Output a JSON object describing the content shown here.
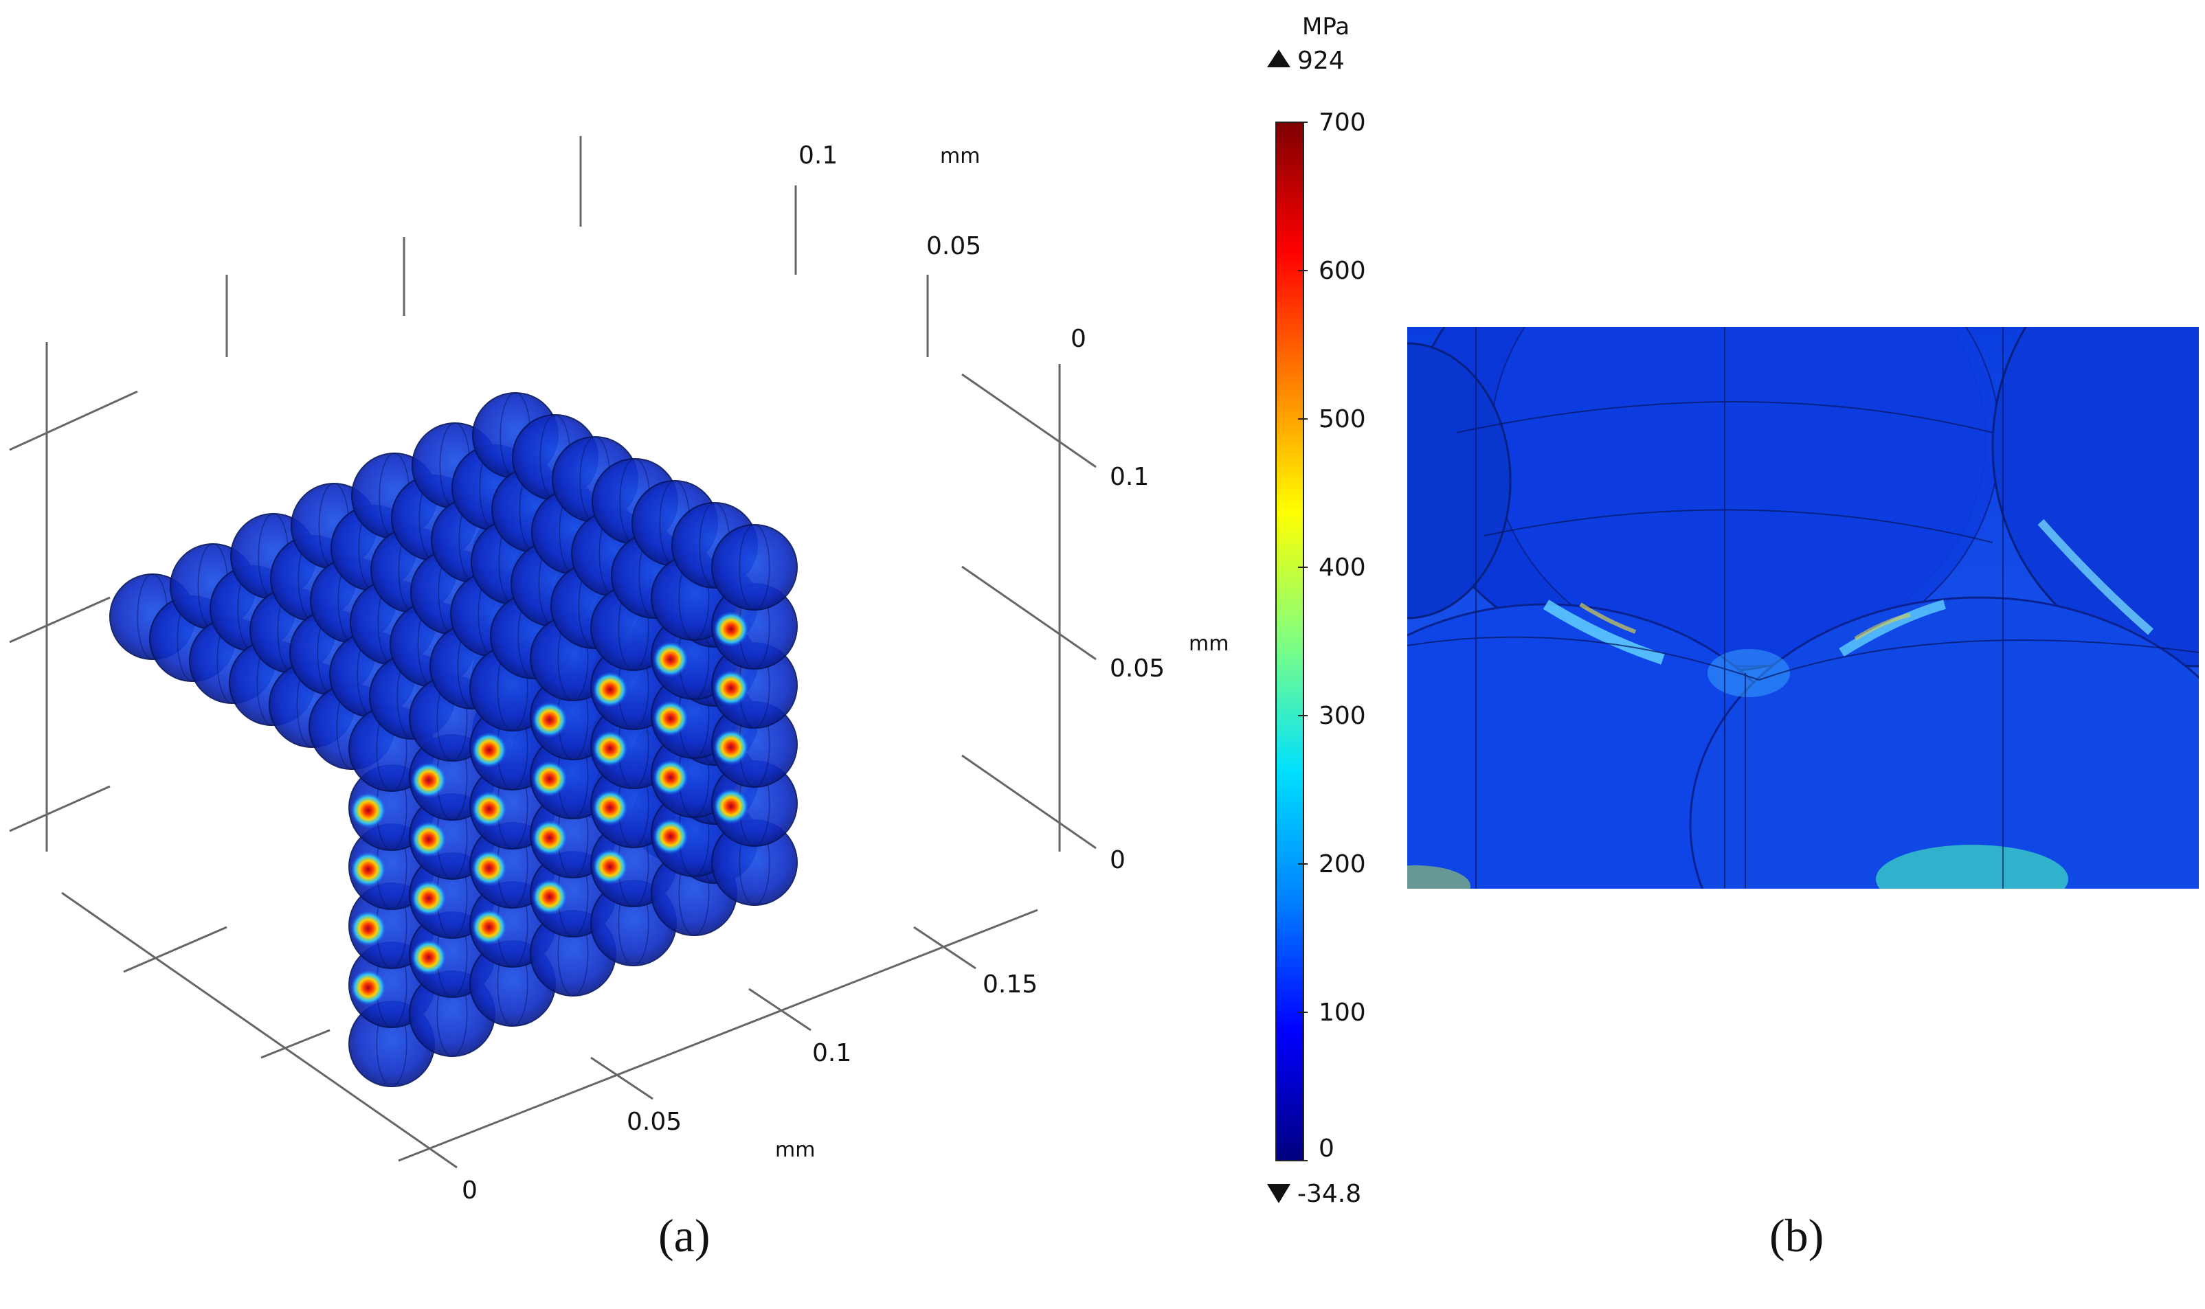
{
  "panel_a": {
    "caption": "(a)",
    "axes": {
      "top_ticks": [
        "0.1",
        "0.05",
        "0"
      ],
      "top_unit": "mm",
      "right_ticks": [
        "0.1",
        "0.05",
        "0"
      ],
      "right_unit": "mm",
      "bottom_ticks": [
        "0.15",
        "0.1",
        "0.05",
        "0"
      ],
      "bottom_unit": "mm"
    }
  },
  "colorbar": {
    "unit": "MPa",
    "max_label": "924",
    "min_label": "-34.8",
    "ticks": [
      "700",
      "600",
      "500",
      "400",
      "300",
      "200",
      "100",
      "0"
    ],
    "tick_values": [
      700,
      600,
      500,
      400,
      300,
      200,
      100,
      0
    ],
    "range": [
      0,
      700
    ],
    "colormap": [
      "#00007f",
      "#0000ff",
      "#0080ff",
      "#00ffff",
      "#80ff80",
      "#ffff00",
      "#ff8000",
      "#ff0000",
      "#7f0000"
    ]
  },
  "panel_b": {
    "caption": "(b)"
  },
  "colors": {
    "sphere": "#1436d6",
    "sphere_dark": "#0a1c8a",
    "hotspot": "#b00020",
    "axis_line": "#555555"
  }
}
